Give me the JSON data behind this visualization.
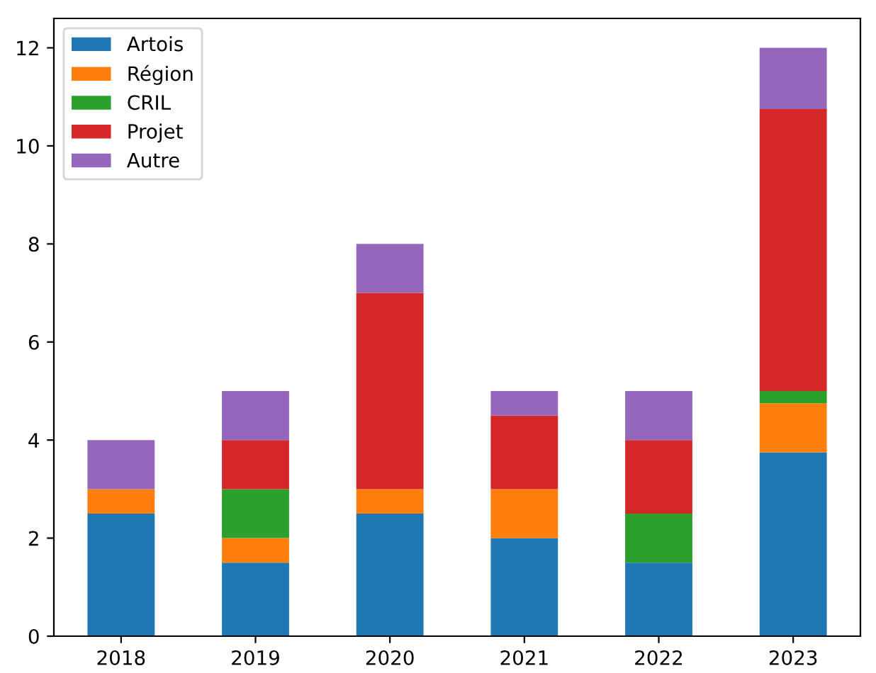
{
  "chart_data": {
    "type": "bar",
    "stacked": true,
    "categories": [
      "2018",
      "2019",
      "2020",
      "2021",
      "2022",
      "2023"
    ],
    "series": [
      {
        "name": "Artois",
        "color": "#1f77b4",
        "values": [
          2.5,
          1.5,
          2.5,
          2,
          1.5,
          3.75
        ]
      },
      {
        "name": "Région",
        "color": "#ff7f0e",
        "values": [
          0.5,
          0.5,
          0.5,
          1,
          0,
          1
        ]
      },
      {
        "name": "CRIL",
        "color": "#2ca02c",
        "values": [
          0,
          1,
          0,
          0,
          1,
          0.25
        ]
      },
      {
        "name": "Projet",
        "color": "#d62728",
        "values": [
          0,
          1,
          4,
          1.5,
          1.5,
          5.75
        ]
      },
      {
        "name": "Autre",
        "color": "#9467bd",
        "values": [
          1,
          1,
          1,
          0.5,
          1,
          1.25
        ]
      }
    ],
    "ylim": [
      0,
      12.6
    ],
    "yticks": [
      0,
      2,
      4,
      6,
      8,
      10,
      12
    ],
    "grid": false,
    "legend": "top left"
  }
}
